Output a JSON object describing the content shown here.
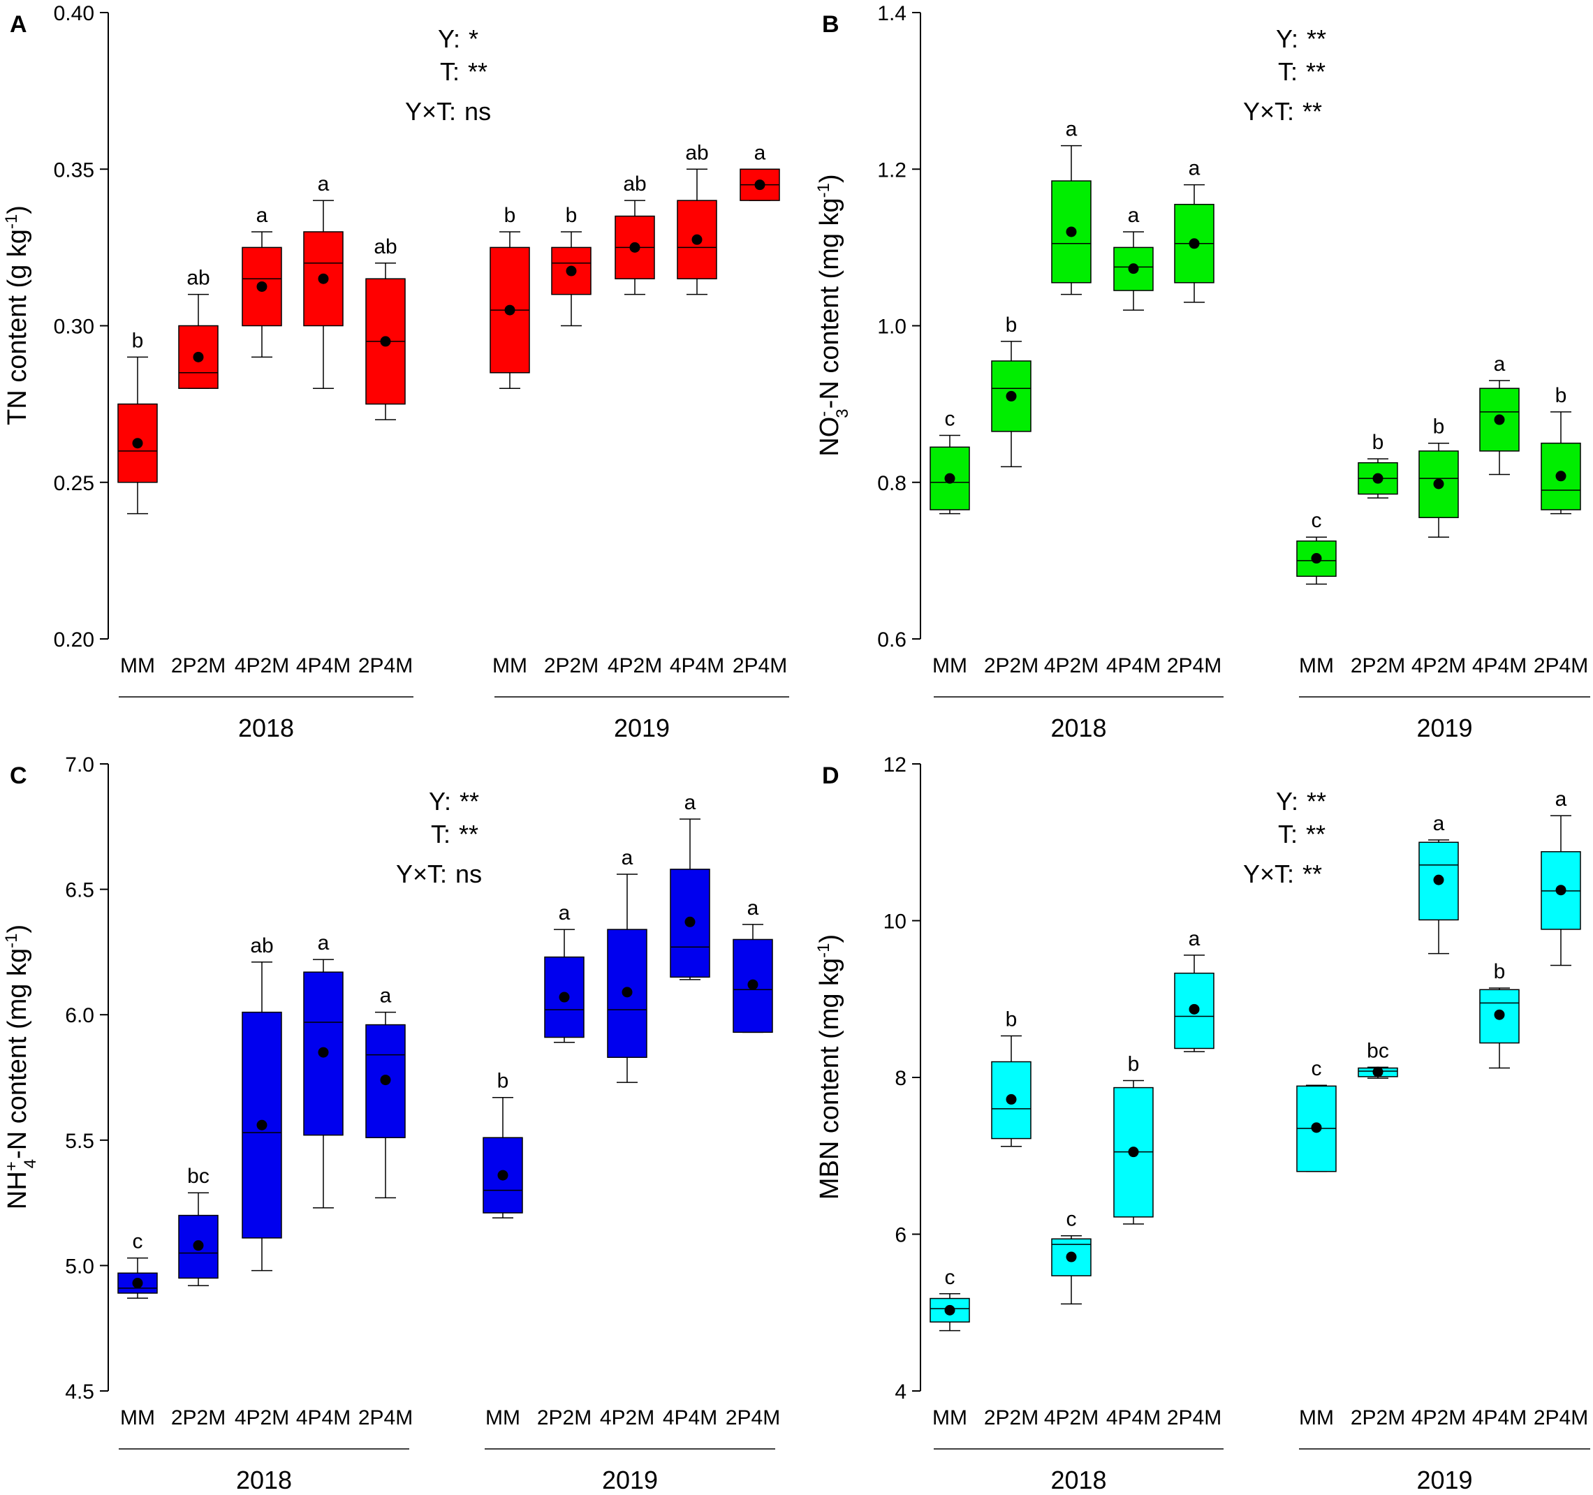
{
  "chart_data": [
    {
      "panel": "A",
      "type": "boxplot",
      "ylabel": {
        "main": "TN content (g kg",
        "sup": "-1",
        "end": ")"
      },
      "ylim": [
        0.2,
        0.4
      ],
      "yticks": [
        "0.20",
        "0.25",
        "0.30",
        "0.35",
        "0.40"
      ],
      "color": "#ff0000",
      "stats": [
        "Y: *",
        "T: **",
        "Y×T: ns"
      ],
      "groups": [
        {
          "year": "2018",
          "boxes": [
            {
              "cat": "MM",
              "min": 0.24,
              "q1": 0.25,
              "median": 0.26,
              "q3": 0.275,
              "max": 0.29,
              "mean": 0.2625,
              "letter": "b"
            },
            {
              "cat": "2P2M",
              "min": 0.28,
              "q1": 0.28,
              "median": 0.285,
              "q3": 0.3,
              "max": 0.31,
              "mean": 0.29,
              "letter": "ab"
            },
            {
              "cat": "4P2M",
              "min": 0.29,
              "q1": 0.3,
              "median": 0.315,
              "q3": 0.325,
              "max": 0.33,
              "mean": 0.3125,
              "letter": "a"
            },
            {
              "cat": "4P4M",
              "min": 0.28,
              "q1": 0.3,
              "median": 0.32,
              "q3": 0.33,
              "max": 0.34,
              "mean": 0.315,
              "letter": "a"
            },
            {
              "cat": "2P4M",
              "min": 0.27,
              "q1": 0.275,
              "median": 0.295,
              "q3": 0.315,
              "max": 0.32,
              "mean": 0.295,
              "letter": "ab"
            }
          ]
        },
        {
          "year": "2019",
          "boxes": [
            {
              "cat": "MM",
              "min": 0.28,
              "q1": 0.285,
              "median": 0.305,
              "q3": 0.325,
              "max": 0.33,
              "mean": 0.305,
              "letter": "b"
            },
            {
              "cat": "2P2M",
              "min": 0.3,
              "q1": 0.31,
              "median": 0.32,
              "q3": 0.325,
              "max": 0.33,
              "mean": 0.3175,
              "letter": "b"
            },
            {
              "cat": "4P2M",
              "min": 0.31,
              "q1": 0.315,
              "median": 0.325,
              "q3": 0.335,
              "max": 0.34,
              "mean": 0.325,
              "letter": "ab"
            },
            {
              "cat": "4P4M",
              "min": 0.31,
              "q1": 0.315,
              "median": 0.325,
              "q3": 0.34,
              "max": 0.35,
              "mean": 0.3275,
              "letter": "ab"
            },
            {
              "cat": "2P4M",
              "min": 0.34,
              "q1": 0.34,
              "median": 0.345,
              "q3": 0.35,
              "max": 0.35,
              "mean": 0.345,
              "letter": "a"
            }
          ]
        }
      ]
    },
    {
      "panel": "B",
      "type": "boxplot",
      "ylabel": {
        "main": "NO",
        "sub": "3",
        "sup1": "-",
        "mid": "-N content (mg kg",
        "sup": "-1",
        "end": ")"
      },
      "ylim": [
        0.6,
        1.4
      ],
      "yticks": [
        "0.6",
        "0.8",
        "1.0",
        "1.2",
        "1.4"
      ],
      "color": "#00ee00",
      "stats": [
        "Y: **",
        "T: **",
        "Y×T: **"
      ],
      "groups": [
        {
          "year": "2018",
          "boxes": [
            {
              "cat": "MM",
              "min": 0.76,
              "q1": 0.765,
              "median": 0.8,
              "q3": 0.845,
              "max": 0.86,
              "mean": 0.805,
              "letter": "c"
            },
            {
              "cat": "2P2M",
              "min": 0.82,
              "q1": 0.865,
              "median": 0.92,
              "q3": 0.955,
              "max": 0.98,
              "mean": 0.91,
              "letter": "b"
            },
            {
              "cat": "4P2M",
              "min": 1.04,
              "q1": 1.055,
              "median": 1.105,
              "q3": 1.185,
              "max": 1.23,
              "mean": 1.12,
              "letter": "a"
            },
            {
              "cat": "4P4M",
              "min": 1.02,
              "q1": 1.045,
              "median": 1.075,
              "q3": 1.1,
              "max": 1.12,
              "mean": 1.073,
              "letter": "a"
            },
            {
              "cat": "2P4M",
              "min": 1.03,
              "q1": 1.055,
              "median": 1.105,
              "q3": 1.155,
              "max": 1.18,
              "mean": 1.105,
              "letter": "a"
            }
          ]
        },
        {
          "year": "2019",
          "boxes": [
            {
              "cat": "MM",
              "min": 0.67,
              "q1": 0.68,
              "median": 0.7,
              "q3": 0.725,
              "max": 0.73,
              "mean": 0.703,
              "letter": "c"
            },
            {
              "cat": "2P2M",
              "min": 0.78,
              "q1": 0.785,
              "median": 0.805,
              "q3": 0.825,
              "max": 0.83,
              "mean": 0.805,
              "letter": "b"
            },
            {
              "cat": "4P2M",
              "min": 0.73,
              "q1": 0.755,
              "median": 0.805,
              "q3": 0.84,
              "max": 0.85,
              "mean": 0.798,
              "letter": "b"
            },
            {
              "cat": "4P4M",
              "min": 0.81,
              "q1": 0.84,
              "median": 0.89,
              "q3": 0.92,
              "max": 0.93,
              "mean": 0.88,
              "letter": "a"
            },
            {
              "cat": "2P4M",
              "min": 0.76,
              "q1": 0.765,
              "median": 0.79,
              "q3": 0.85,
              "max": 0.89,
              "mean": 0.808,
              "letter": "b"
            }
          ]
        }
      ]
    },
    {
      "panel": "C",
      "type": "boxplot",
      "ylabel": {
        "main": "NH",
        "sub": "4",
        "sup1": "+",
        "mid": "-N content (mg kg",
        "sup": "-1",
        "end": ")"
      },
      "ylim": [
        4.5,
        7.0
      ],
      "yticks": [
        "4.5",
        "5.0",
        "5.5",
        "6.0",
        "6.5",
        "7.0"
      ],
      "color": "#0000ee",
      "stats": [
        "Y: **",
        "T: **",
        "Y×T: ns"
      ],
      "groups": [
        {
          "year": "2018",
          "boxes": [
            {
              "cat": "MM",
              "min": 4.87,
              "q1": 4.89,
              "median": 4.91,
              "q3": 4.97,
              "max": 5.03,
              "mean": 4.93,
              "letter": "c"
            },
            {
              "cat": "2P2M",
              "min": 4.92,
              "q1": 4.95,
              "median": 5.05,
              "q3": 5.2,
              "max": 5.29,
              "mean": 5.08,
              "letter": "bc"
            },
            {
              "cat": "4P2M",
              "min": 4.98,
              "q1": 5.11,
              "median": 5.53,
              "q3": 6.01,
              "max": 6.21,
              "mean": 5.56,
              "letter": "ab"
            },
            {
              "cat": "4P4M",
              "min": 5.23,
              "q1": 5.52,
              "median": 5.97,
              "q3": 6.17,
              "max": 6.22,
              "mean": 5.85,
              "letter": "a"
            },
            {
              "cat": "2P4M",
              "min": 5.27,
              "q1": 5.51,
              "median": 5.84,
              "q3": 5.96,
              "max": 6.01,
              "mean": 5.74,
              "letter": "a"
            }
          ]
        },
        {
          "year": "2019",
          "boxes": [
            {
              "cat": "MM",
              "min": 5.19,
              "q1": 5.21,
              "median": 5.3,
              "q3": 5.51,
              "max": 5.67,
              "mean": 5.36,
              "letter": "b"
            },
            {
              "cat": "2P2M",
              "min": 5.89,
              "q1": 5.91,
              "median": 6.02,
              "q3": 6.23,
              "max": 6.34,
              "mean": 6.07,
              "letter": "a"
            },
            {
              "cat": "4P2M",
              "min": 5.73,
              "q1": 5.83,
              "median": 6.02,
              "q3": 6.34,
              "max": 6.56,
              "mean": 6.09,
              "letter": "a"
            },
            {
              "cat": "4P4M",
              "min": 6.14,
              "q1": 6.15,
              "median": 6.27,
              "q3": 6.58,
              "max": 6.78,
              "mean": 6.37,
              "letter": "a"
            },
            {
              "cat": "2P4M",
              "min": 5.93,
              "q1": 5.93,
              "median": 6.1,
              "q3": 6.3,
              "max": 6.36,
              "mean": 6.12,
              "letter": "a"
            }
          ]
        }
      ]
    },
    {
      "panel": "D",
      "type": "boxplot",
      "ylabel": {
        "main": "MBN content (mg kg",
        "sup": "-1",
        "end": ")"
      },
      "ylim": [
        4,
        12
      ],
      "yticks": [
        "4",
        "6",
        "8",
        "10",
        "12"
      ],
      "color": "#00ffff",
      "stats": [
        "Y: **",
        "T: **",
        "Y×T: **"
      ],
      "groups": [
        {
          "year": "2018",
          "boxes": [
            {
              "cat": "MM",
              "min": 4.77,
              "q1": 4.88,
              "median": 5.05,
              "q3": 5.18,
              "max": 5.24,
              "mean": 5.03,
              "letter": "c"
            },
            {
              "cat": "2P2M",
              "min": 7.12,
              "q1": 7.22,
              "median": 7.6,
              "q3": 8.2,
              "max": 8.53,
              "mean": 7.72,
              "letter": "b"
            },
            {
              "cat": "4P2M",
              "min": 5.11,
              "q1": 5.47,
              "median": 5.87,
              "q3": 5.94,
              "max": 5.98,
              "mean": 5.71,
              "letter": "c"
            },
            {
              "cat": "4P4M",
              "min": 6.13,
              "q1": 6.22,
              "median": 7.05,
              "q3": 7.87,
              "max": 7.96,
              "mean": 7.05,
              "letter": "b"
            },
            {
              "cat": "2P4M",
              "min": 8.33,
              "q1": 8.37,
              "median": 8.78,
              "q3": 9.33,
              "max": 9.56,
              "mean": 8.87,
              "letter": "a"
            }
          ]
        },
        {
          "year": "2019",
          "boxes": [
            {
              "cat": "MM",
              "min": 6.8,
              "q1": 6.8,
              "median": 7.35,
              "q3": 7.89,
              "max": 7.9,
              "mean": 7.36,
              "letter": "c"
            },
            {
              "cat": "2P2M",
              "min": 7.99,
              "q1": 8.01,
              "median": 8.08,
              "q3": 8.12,
              "max": 8.13,
              "mean": 8.07,
              "letter": "bc"
            },
            {
              "cat": "4P2M",
              "min": 9.58,
              "q1": 10.01,
              "median": 10.71,
              "q3": 11.0,
              "max": 11.03,
              "mean": 10.52,
              "letter": "a"
            },
            {
              "cat": "4P4M",
              "min": 8.12,
              "q1": 8.44,
              "median": 8.95,
              "q3": 9.12,
              "max": 9.14,
              "mean": 8.8,
              "letter": "b"
            },
            {
              "cat": "2P4M",
              "min": 9.43,
              "q1": 9.89,
              "median": 10.38,
              "q3": 10.88,
              "max": 11.34,
              "mean": 10.39,
              "letter": "a"
            }
          ]
        }
      ]
    }
  ]
}
